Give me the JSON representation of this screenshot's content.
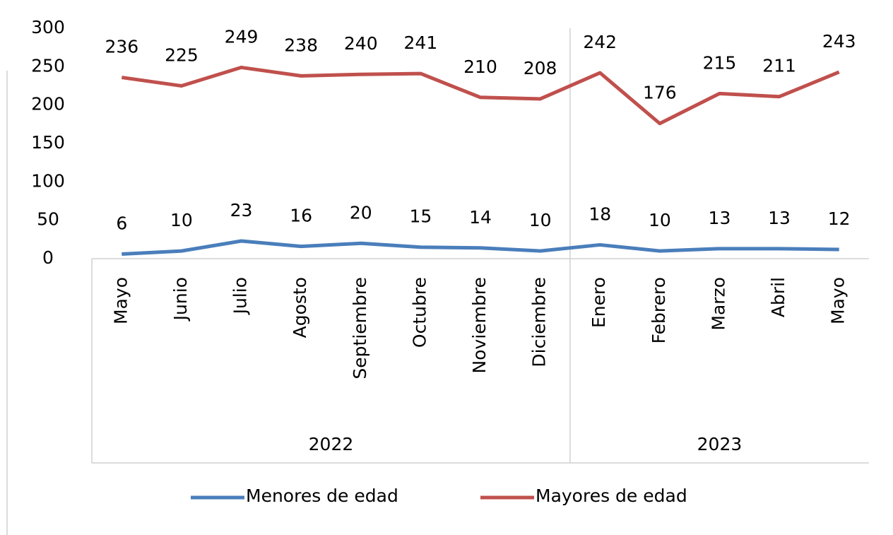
{
  "chart_data": {
    "type": "line",
    "categories": [
      "Mayo",
      "Junio",
      "Julio",
      "Agosto",
      "Septiembre",
      "Octubre",
      "Noviembre",
      "Diciembre",
      "Enero",
      "Febrero",
      "Marzo",
      "Abril",
      "Mayo"
    ],
    "groups": [
      {
        "label": "2022",
        "count": 8
      },
      {
        "label": "2023",
        "count": 5
      }
    ],
    "series": [
      {
        "name": "Menores de edad",
        "color": "#4a7ebb",
        "values": [
          6,
          10,
          23,
          16,
          20,
          15,
          14,
          10,
          18,
          10,
          13,
          13,
          12
        ]
      },
      {
        "name": "Mayores de edad",
        "color": "#c0504d",
        "values": [
          236,
          225,
          249,
          238,
          240,
          241,
          210,
          208,
          242,
          176,
          215,
          211,
          243
        ]
      }
    ],
    "ylim": [
      0,
      300
    ],
    "yticks": [
      0,
      50,
      100,
      150,
      200,
      250,
      300
    ],
    "legend": "bottom",
    "data_labels": true
  }
}
